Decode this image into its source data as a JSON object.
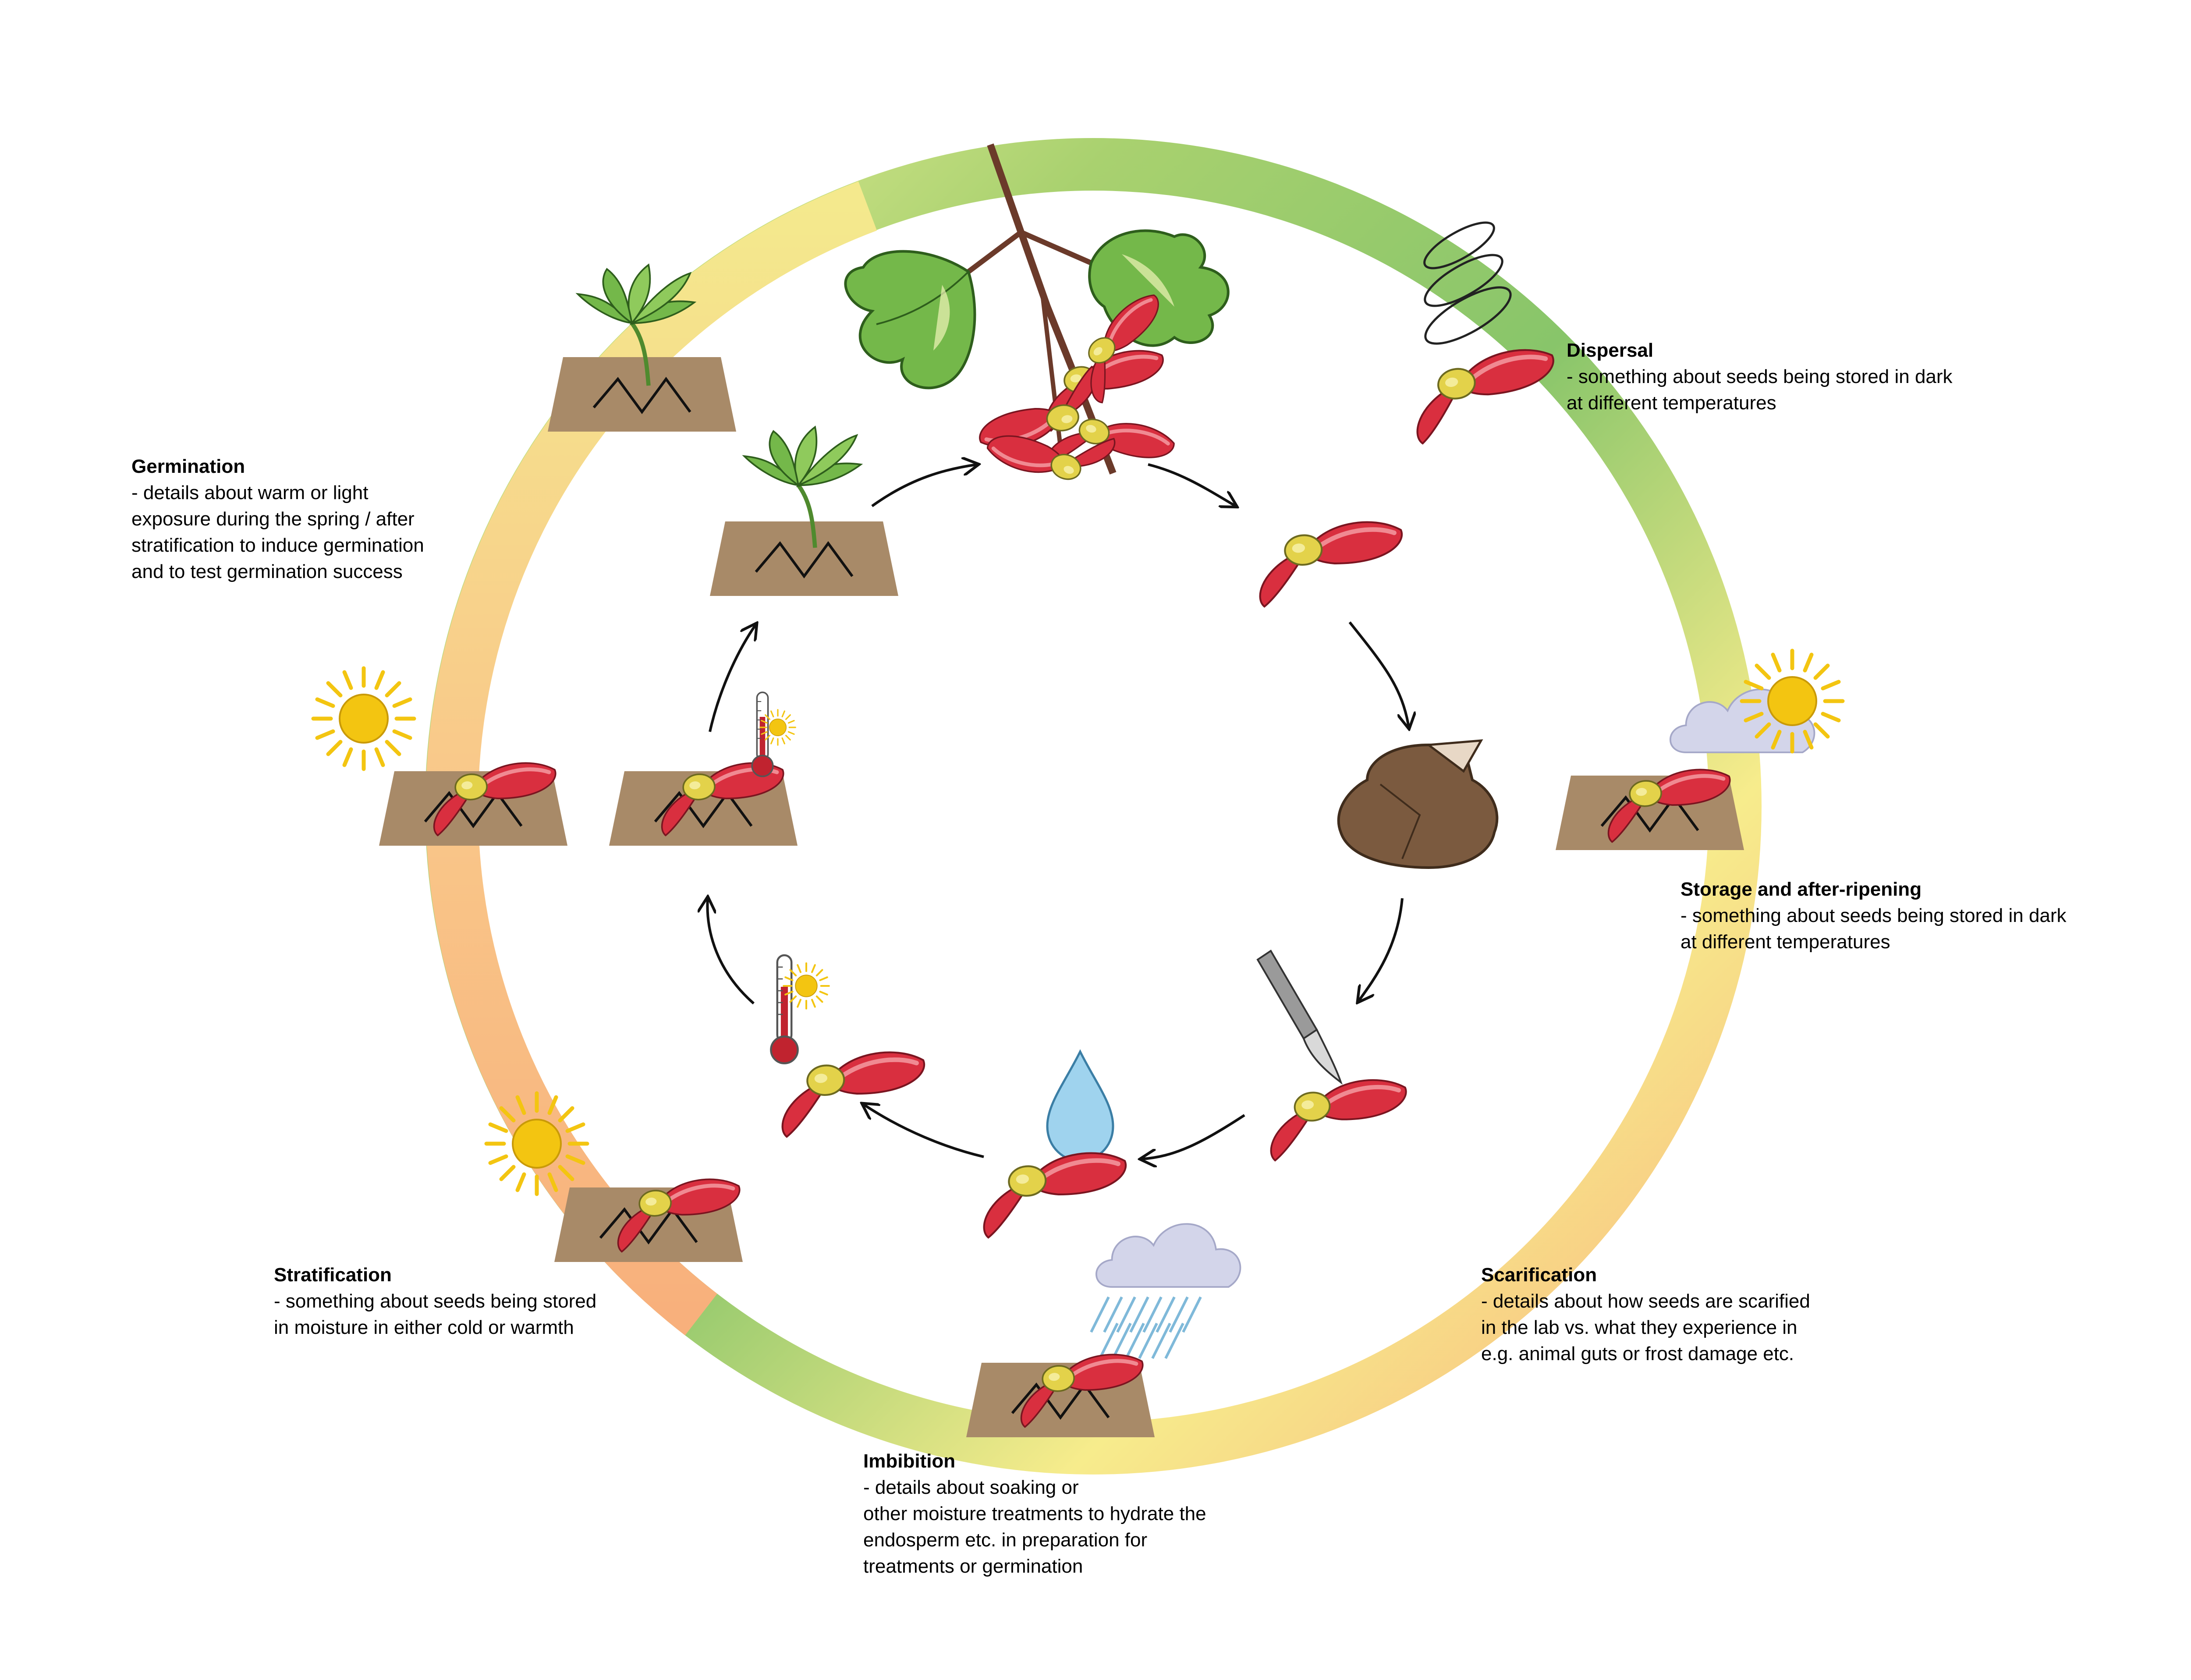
{
  "stages": [
    {
      "id": "dispersal",
      "title": "Dispersal",
      "body": " - something about seeds being stored in dark\nat different temperatures"
    },
    {
      "id": "storage",
      "title": "Storage and after-ripening",
      "body": " - something about seeds being stored in dark\nat different temperatures"
    },
    {
      "id": "scarification",
      "title": "Scarification",
      "body": " - details about how seeds are scarified\nin the lab vs. what they experience in\ne.g. animal guts or frost damage etc."
    },
    {
      "id": "imbibition",
      "title": "Imbibition",
      "body": " - details about soaking or\nother moisture treatments to hydrate the\nendosperm etc. in preparation for\ntreatments or germination"
    },
    {
      "id": "stratification",
      "title": "Stratification",
      "body": " - something about seeds being stored\nin moisture in either cold or warmth"
    },
    {
      "id": "germination",
      "title": "Germination",
      "body": " - details about warm or light\nexposure during the spring / after\nstratification to induce germination\nand to test germination success"
    }
  ],
  "icons": [
    "maple-branch-icon",
    "samara-seed-icon",
    "spiral-wind-icon",
    "soil-plot-icon",
    "seedling-icon",
    "sun-icon",
    "cloud-icon",
    "rain-cloud-icon",
    "rock-icon",
    "scalpel-icon",
    "water-drop-icon",
    "thermometer-icon",
    "cycle-arrow-icon"
  ],
  "colors": {
    "ring_top": "#9ccb6a",
    "ring_right": "#86c56b",
    "ring_bottom_right": "#f5e88a",
    "ring_bottom": "#f8b47e",
    "ring_left": "#f8c98e",
    "soil": "#a88a68",
    "seed_red": "#d92f3f",
    "seed_yellow": "#e3d24a",
    "leaf_green": "#74b84a",
    "sun_yellow": "#f3c511",
    "cloud": "#d3d5ea",
    "water": "#9fd3ee",
    "rock": "#7b5a3f"
  }
}
